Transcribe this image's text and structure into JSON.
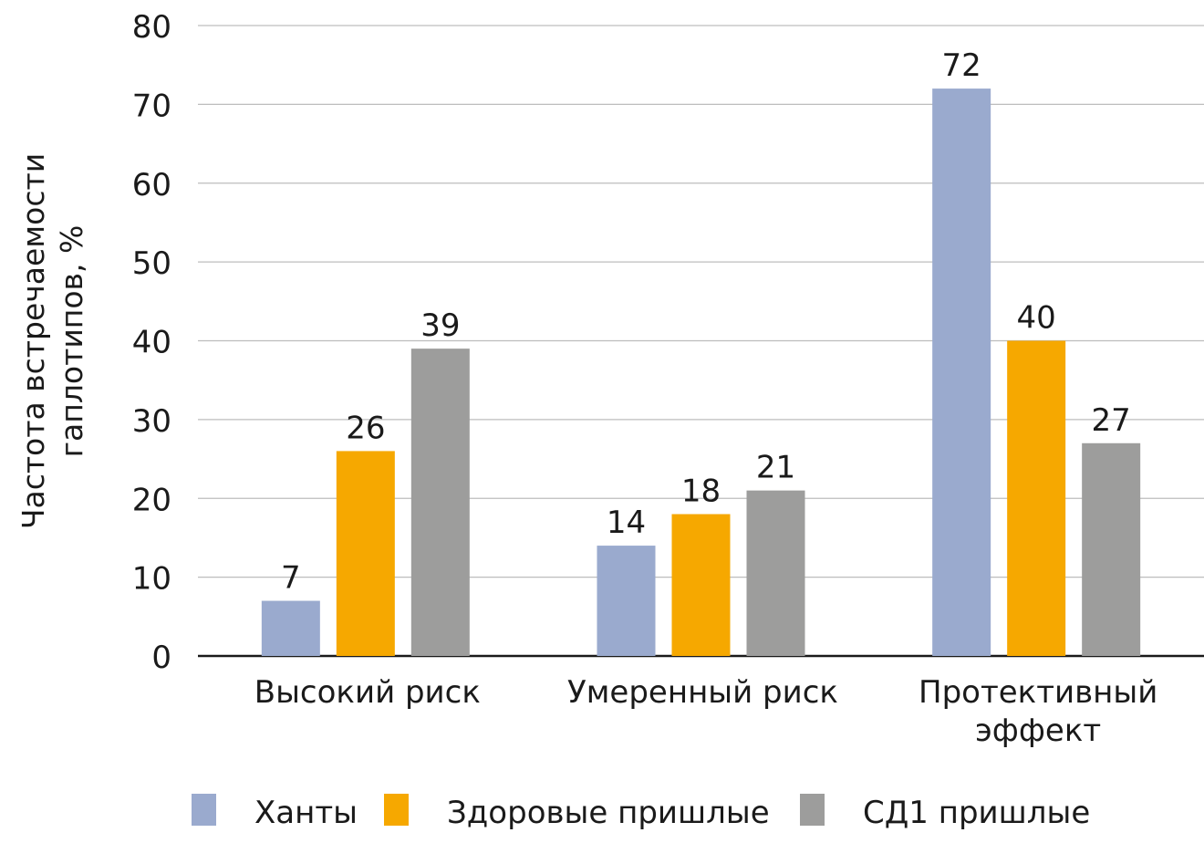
{
  "chart_data": {
    "type": "bar",
    "title": "",
    "xlabel": "",
    "ylabel": [
      "Частота встречаемости",
      "гаплотипов, %"
    ],
    "ylim": [
      0,
      80
    ],
    "yticks": [
      0,
      10,
      20,
      30,
      40,
      50,
      60,
      70,
      80
    ],
    "grid": true,
    "categories": [
      [
        "Высокий риск"
      ],
      [
        "Умеренный риск"
      ],
      [
        "Протективный",
        "эффект"
      ]
    ],
    "series": [
      {
        "name": "Ханты",
        "color": "#9aaace",
        "values": [
          7,
          14,
          72
        ]
      },
      {
        "name": "Здоровые пришлые",
        "color": "#f6a800",
        "values": [
          26,
          18,
          40
        ]
      },
      {
        "name": "СД1 пришлые",
        "color": "#9d9d9c",
        "values": [
          39,
          21,
          27
        ]
      }
    ],
    "legend_position": "bottom",
    "data_labels": true
  }
}
